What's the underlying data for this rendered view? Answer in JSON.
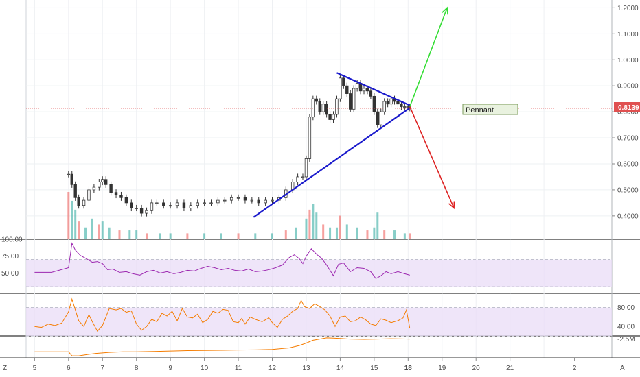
{
  "chart_data": {
    "type": "line",
    "main": {
      "kind": "candlestick",
      "x_ticks": [
        "5",
        "6",
        "7",
        "8",
        "9",
        "10",
        "11",
        "12",
        "13",
        "14",
        "15",
        "18",
        "19",
        "20",
        "21",
        "2"
      ],
      "y_ticks": [
        "1.2000",
        "1.1000",
        "1.0000",
        "0.9000",
        "0.8000",
        "0.7000",
        "0.6000",
        "0.5000",
        "0.4000"
      ],
      "ylim": [
        0.31,
        1.23
      ],
      "xlim": [
        4.75,
        22.0
      ],
      "last_price": "0.8139",
      "last_value": 0.8139,
      "annotation": "Pennant",
      "close_series": [
        [
          6.0,
          0.56
        ],
        [
          6.1,
          0.52
        ],
        [
          6.2,
          0.47
        ],
        [
          6.3,
          0.44
        ],
        [
          6.45,
          0.46
        ],
        [
          6.6,
          0.5
        ],
        [
          6.75,
          0.51
        ],
        [
          6.9,
          0.53
        ],
        [
          7.0,
          0.54
        ],
        [
          7.1,
          0.52
        ],
        [
          7.25,
          0.49
        ],
        [
          7.4,
          0.48
        ],
        [
          7.55,
          0.47
        ],
        [
          7.7,
          0.45
        ],
        [
          7.85,
          0.43
        ],
        [
          8.0,
          0.43
        ],
        [
          8.15,
          0.41
        ],
        [
          8.3,
          0.42
        ],
        [
          8.45,
          0.45
        ],
        [
          8.6,
          0.45
        ],
        [
          8.8,
          0.44
        ],
        [
          9.0,
          0.44
        ],
        [
          9.2,
          0.45
        ],
        [
          9.4,
          0.43
        ],
        [
          9.6,
          0.44
        ],
        [
          9.8,
          0.45
        ],
        [
          10.0,
          0.45
        ],
        [
          10.2,
          0.45
        ],
        [
          10.4,
          0.46
        ],
        [
          10.6,
          0.46
        ],
        [
          10.8,
          0.47
        ],
        [
          11.0,
          0.47
        ],
        [
          11.2,
          0.46
        ],
        [
          11.4,
          0.46
        ],
        [
          11.6,
          0.45
        ],
        [
          11.8,
          0.46
        ],
        [
          12.0,
          0.46
        ],
        [
          12.2,
          0.47
        ],
        [
          12.4,
          0.5
        ],
        [
          12.6,
          0.53
        ],
        [
          12.75,
          0.55
        ],
        [
          12.9,
          0.55
        ],
        [
          13.0,
          0.62
        ],
        [
          13.1,
          0.78
        ],
        [
          13.2,
          0.85
        ],
        [
          13.3,
          0.84
        ],
        [
          13.4,
          0.8
        ],
        [
          13.5,
          0.83
        ],
        [
          13.6,
          0.79
        ],
        [
          13.7,
          0.77
        ],
        [
          13.8,
          0.79
        ],
        [
          13.9,
          0.85
        ],
        [
          14.0,
          0.93
        ],
        [
          14.1,
          0.9
        ],
        [
          14.2,
          0.87
        ],
        [
          14.3,
          0.81
        ],
        [
          14.4,
          0.89
        ],
        [
          14.5,
          0.91
        ],
        [
          14.6,
          0.88
        ],
        [
          14.7,
          0.89
        ],
        [
          14.8,
          0.88
        ],
        [
          14.9,
          0.86
        ],
        [
          15.0,
          0.8
        ],
        [
          15.1,
          0.75
        ],
        [
          15.2,
          0.8
        ],
        [
          15.3,
          0.84
        ],
        [
          15.4,
          0.83
        ],
        [
          15.5,
          0.85
        ],
        [
          15.6,
          0.84
        ],
        [
          15.7,
          0.83
        ],
        [
          15.8,
          0.82
        ],
        [
          15.9,
          0.82
        ],
        [
          16.0,
          0.82
        ],
        [
          16.05,
          0.8139
        ]
      ],
      "volume": [
        [
          6.0,
          0.16
        ],
        [
          6.1,
          0.13
        ],
        [
          6.2,
          0.1
        ],
        [
          6.3,
          0.06
        ],
        [
          6.5,
          0.04
        ],
        [
          6.7,
          0.07
        ],
        [
          6.9,
          0.05
        ],
        [
          7.0,
          0.06
        ],
        [
          7.2,
          0.04
        ],
        [
          7.5,
          0.03
        ],
        [
          7.8,
          0.03
        ],
        [
          8.0,
          0.03
        ],
        [
          8.3,
          0.02
        ],
        [
          8.7,
          0.02
        ],
        [
          9.0,
          0.02
        ],
        [
          9.5,
          0.02
        ],
        [
          10.0,
          0.02
        ],
        [
          10.5,
          0.02
        ],
        [
          11.0,
          0.02
        ],
        [
          11.5,
          0.02
        ],
        [
          12.0,
          0.02
        ],
        [
          12.4,
          0.03
        ],
        [
          12.7,
          0.04
        ],
        [
          13.0,
          0.07
        ],
        [
          13.1,
          0.1
        ],
        [
          13.2,
          0.12
        ],
        [
          13.3,
          0.09
        ],
        [
          13.5,
          0.05
        ],
        [
          13.7,
          0.04
        ],
        [
          13.9,
          0.04
        ],
        [
          14.0,
          0.08
        ],
        [
          14.2,
          0.05
        ],
        [
          14.5,
          0.04
        ],
        [
          14.8,
          0.03
        ],
        [
          15.0,
          0.04
        ],
        [
          15.1,
          0.09
        ],
        [
          15.3,
          0.03
        ],
        [
          15.6,
          0.03
        ],
        [
          15.9,
          0.02
        ],
        [
          16.05,
          0.02
        ]
      ],
      "trend_upper": [
        [
          13.9,
          0.95
        ],
        [
          16.05,
          0.825
        ]
      ],
      "trend_lower": [
        [
          11.45,
          0.395
        ],
        [
          16.05,
          0.815
        ]
      ],
      "arrow_up": [
        [
          16.05,
          0.82
        ],
        [
          17.15,
          1.2
        ]
      ],
      "arrow_down": [
        [
          16.05,
          0.82
        ],
        [
          17.35,
          0.43
        ]
      ]
    },
    "rsi": {
      "y_ticks": [
        "100.00",
        "75.00",
        "50.00"
      ],
      "ylim": [
        20,
        100
      ],
      "band": [
        30,
        70
      ],
      "values": [
        [
          5.0,
          51
        ],
        [
          5.5,
          51
        ],
        [
          6.0,
          58
        ],
        [
          6.1,
          94
        ],
        [
          6.2,
          84
        ],
        [
          6.35,
          76
        ],
        [
          6.5,
          72
        ],
        [
          6.7,
          66
        ],
        [
          6.85,
          67
        ],
        [
          7.0,
          64
        ],
        [
          7.15,
          55
        ],
        [
          7.3,
          56
        ],
        [
          7.5,
          51
        ],
        [
          7.7,
          52
        ],
        [
          7.9,
          49
        ],
        [
          8.1,
          47
        ],
        [
          8.3,
          52
        ],
        [
          8.5,
          54
        ],
        [
          8.7,
          50
        ],
        [
          8.9,
          52
        ],
        [
          9.1,
          49
        ],
        [
          9.3,
          51
        ],
        [
          9.5,
          54
        ],
        [
          9.7,
          53
        ],
        [
          9.9,
          57
        ],
        [
          10.1,
          60
        ],
        [
          10.3,
          58
        ],
        [
          10.5,
          55
        ],
        [
          10.7,
          57
        ],
        [
          10.9,
          54
        ],
        [
          11.1,
          53
        ],
        [
          11.3,
          56
        ],
        [
          11.5,
          52
        ],
        [
          11.7,
          53
        ],
        [
          11.9,
          55
        ],
        [
          12.1,
          58
        ],
        [
          12.3,
          62
        ],
        [
          12.5,
          73
        ],
        [
          12.65,
          77
        ],
        [
          12.8,
          71
        ],
        [
          12.9,
          64
        ],
        [
          13.0,
          75
        ],
        [
          13.15,
          86
        ],
        [
          13.3,
          78
        ],
        [
          13.45,
          72
        ],
        [
          13.6,
          62
        ],
        [
          13.8,
          46
        ],
        [
          13.95,
          63
        ],
        [
          14.1,
          65
        ],
        [
          14.3,
          52
        ],
        [
          14.5,
          58
        ],
        [
          14.7,
          57
        ],
        [
          14.9,
          52
        ],
        [
          15.05,
          42
        ],
        [
          15.2,
          46
        ],
        [
          15.35,
          52
        ],
        [
          15.5,
          49
        ],
        [
          15.7,
          52
        ],
        [
          15.9,
          49
        ],
        [
          16.05,
          47
        ]
      ]
    },
    "stoch": {
      "y_ticks": [
        "80.00",
        "40.00"
      ],
      "ylim": [
        20,
        110
      ],
      "band": [
        20,
        80
      ],
      "values": [
        [
          5.0,
          40
        ],
        [
          5.2,
          38
        ],
        [
          5.4,
          45
        ],
        [
          5.6,
          42
        ],
        [
          5.8,
          47
        ],
        [
          6.0,
          71
        ],
        [
          6.1,
          98
        ],
        [
          6.2,
          75
        ],
        [
          6.3,
          52
        ],
        [
          6.45,
          40
        ],
        [
          6.6,
          65
        ],
        [
          6.7,
          50
        ],
        [
          6.85,
          30
        ],
        [
          7.0,
          42
        ],
        [
          7.2,
          78
        ],
        [
          7.4,
          75
        ],
        [
          7.55,
          78
        ],
        [
          7.7,
          70
        ],
        [
          7.85,
          73
        ],
        [
          8.0,
          45
        ],
        [
          8.15,
          32
        ],
        [
          8.3,
          40
        ],
        [
          8.45,
          55
        ],
        [
          8.6,
          50
        ],
        [
          8.75,
          68
        ],
        [
          8.9,
          62
        ],
        [
          9.05,
          72
        ],
        [
          9.2,
          52
        ],
        [
          9.35,
          78
        ],
        [
          9.5,
          60
        ],
        [
          9.65,
          58
        ],
        [
          9.8,
          66
        ],
        [
          9.95,
          48
        ],
        [
          10.1,
          55
        ],
        [
          10.25,
          72
        ],
        [
          10.4,
          68
        ],
        [
          10.55,
          76
        ],
        [
          10.7,
          74
        ],
        [
          10.85,
          50
        ],
        [
          11.0,
          48
        ],
        [
          11.1,
          57
        ],
        [
          11.2,
          45
        ],
        [
          11.35,
          60
        ],
        [
          11.5,
          55
        ],
        [
          11.7,
          50
        ],
        [
          11.9,
          58
        ],
        [
          12.0,
          48
        ],
        [
          12.15,
          38
        ],
        [
          12.3,
          55
        ],
        [
          12.45,
          62
        ],
        [
          12.6,
          72
        ],
        [
          12.75,
          78
        ],
        [
          12.85,
          95
        ],
        [
          12.95,
          82
        ],
        [
          13.1,
          78
        ],
        [
          13.25,
          88
        ],
        [
          13.4,
          82
        ],
        [
          13.55,
          75
        ],
        [
          13.7,
          62
        ],
        [
          13.85,
          40
        ],
        [
          14.0,
          60
        ],
        [
          14.15,
          62
        ],
        [
          14.3,
          50
        ],
        [
          14.45,
          52
        ],
        [
          14.6,
          60
        ],
        [
          14.75,
          54
        ],
        [
          14.9,
          45
        ],
        [
          15.05,
          42
        ],
        [
          15.2,
          56
        ],
        [
          15.35,
          53
        ],
        [
          15.5,
          48
        ],
        [
          15.7,
          52
        ],
        [
          15.85,
          58
        ],
        [
          15.95,
          75
        ],
        [
          16.05,
          36
        ]
      ]
    },
    "lower": {
      "y_ticks": [
        "-2.5M"
      ],
      "ylim": [
        -12,
        -1
      ],
      "values": [
        [
          5.0,
          -9
        ],
        [
          5.5,
          -9
        ],
        [
          6.0,
          -9
        ],
        [
          6.1,
          -11
        ],
        [
          6.3,
          -11
        ],
        [
          6.5,
          -10.5
        ],
        [
          6.8,
          -9.8
        ],
        [
          7.2,
          -9.3
        ],
        [
          7.6,
          -9.0
        ],
        [
          8.0,
          -9.0
        ],
        [
          8.5,
          -8.8
        ],
        [
          9.0,
          -8.6
        ],
        [
          9.5,
          -8.4
        ],
        [
          10.0,
          -8.3
        ],
        [
          10.5,
          -8.2
        ],
        [
          11.0,
          -8.1
        ],
        [
          11.5,
          -8.0
        ],
        [
          12.0,
          -7.8
        ],
        [
          12.5,
          -7.0
        ],
        [
          12.8,
          -5.8
        ],
        [
          13.0,
          -4.6
        ],
        [
          13.2,
          -3.2
        ],
        [
          13.4,
          -2.6
        ],
        [
          13.6,
          -2.0
        ],
        [
          13.8,
          -2.1
        ],
        [
          14.0,
          -2.3
        ],
        [
          14.3,
          -2.6
        ],
        [
          14.7,
          -2.7
        ],
        [
          15.1,
          -2.6
        ],
        [
          15.5,
          -2.4
        ],
        [
          15.8,
          -2.5
        ],
        [
          16.05,
          -2.6
        ]
      ]
    }
  },
  "colors": {
    "candle_up": "#26a69a",
    "candle_down": "#ef5350",
    "candle_dark": "#333333",
    "trend": "#1a1acc",
    "arrow_up": "#33dd33",
    "arrow_down": "#dd2222",
    "price_line": "#e05050",
    "rsi_line": "#9c27b0",
    "band_fill": "#eadcf7",
    "stoch_line": "#f57c00",
    "lower_line": "#f57c00"
  },
  "axis_corner": {
    "left": "Z",
    "right": "A"
  }
}
